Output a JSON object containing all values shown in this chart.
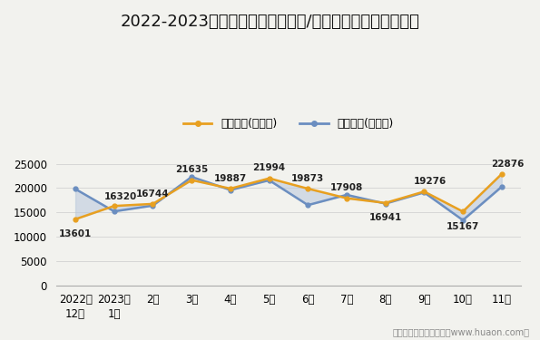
{
  "title": "2022-2023年包头市（境内目的地/货源地）进、出口额统计",
  "x_labels": [
    "2022年\n12月",
    "2023年\n1月",
    "2月",
    "3月",
    "4月",
    "5月",
    "6月",
    "7月",
    "8月",
    "9月",
    "10月",
    "11月"
  ],
  "export_values": [
    13601,
    16320,
    16744,
    21635,
    19887,
    21994,
    19873,
    17908,
    16941,
    19276,
    15167,
    22876
  ],
  "import_values": [
    19800,
    15200,
    16400,
    22300,
    19600,
    21600,
    16500,
    18600,
    16800,
    19100,
    13400,
    20261
  ],
  "export_label": "出口总额(万美元)",
  "import_label": "进口总额(万美元)",
  "export_color": "#E8A020",
  "import_color": "#6B8EC0",
  "fill_color": "#B8C8DC",
  "fill_alpha": 0.55,
  "ylim": [
    0,
    27000
  ],
  "yticks": [
    0,
    5000,
    10000,
    15000,
    20000,
    25000
  ],
  "footer": "制图：华经产业研究院（www.huaon.com）",
  "bg_color": "#F2F2EE",
  "title_fontsize": 13,
  "label_fontsize": 7.5,
  "tick_fontsize": 8.5,
  "legend_fontsize": 9
}
